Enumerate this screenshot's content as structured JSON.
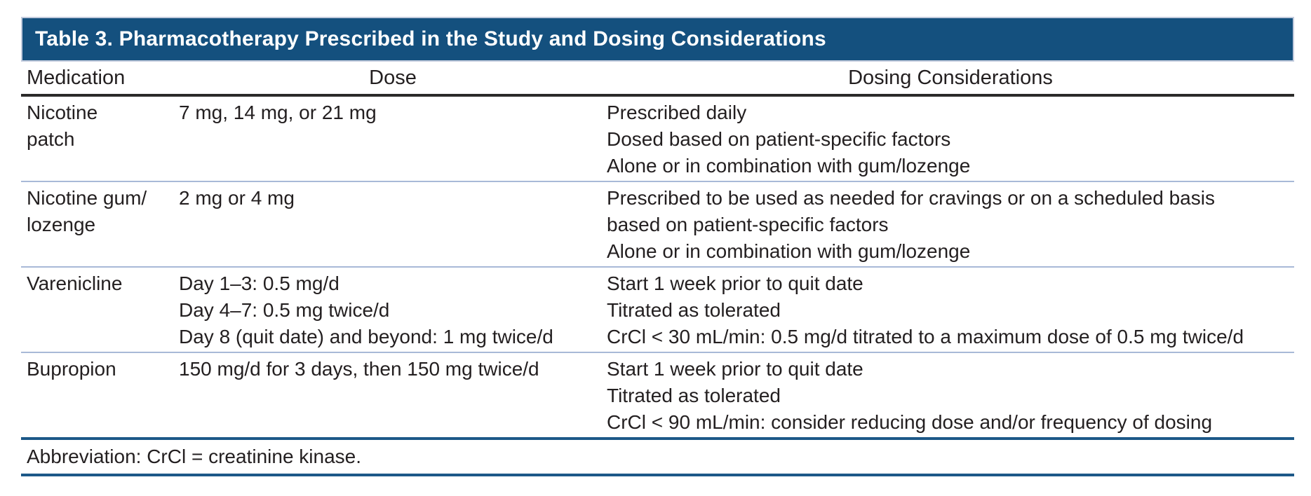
{
  "table": {
    "title": "Table 3. Pharmacotherapy Prescribed in the Study and Dosing Considerations",
    "columns": {
      "medication": "Medication",
      "dose": "Dose",
      "considerations": "Dosing Considerations"
    },
    "rows": [
      {
        "medication_lines": [
          "Nicotine",
          "patch"
        ],
        "dose_lines": [
          "7 mg, 14 mg, or 21 mg"
        ],
        "considerations_lines": [
          "Prescribed daily",
          "Dosed based on patient-specific factors",
          "Alone or in combination with gum/lozenge"
        ]
      },
      {
        "medication_lines": [
          "Nicotine gum/",
          "lozenge"
        ],
        "dose_lines": [
          "2 mg or 4 mg"
        ],
        "considerations_lines": [
          "Prescribed to be used as needed for cravings or on a scheduled basis",
          "based on patient-specific factors",
          "Alone or in combination with gum/lozenge"
        ]
      },
      {
        "medication_lines": [
          "Varenicline"
        ],
        "dose_lines": [
          "Day 1–3: 0.5 mg/d",
          "Day 4–7: 0.5 mg twice/d",
          "Day 8 (quit date) and beyond: 1 mg twice/d"
        ],
        "considerations_lines": [
          "Start 1 week prior to quit date",
          "Titrated as tolerated",
          "CrCl < 30 mL/min: 0.5 mg/d titrated to a maximum dose of 0.5 mg twice/d"
        ]
      },
      {
        "medication_lines": [
          "Bupropion"
        ],
        "dose_lines": [
          "150 mg/d for 3 days, then 150 mg twice/d"
        ],
        "considerations_lines": [
          "Start 1 week prior to quit date",
          "Titrated as tolerated",
          "CrCl < 90 mL/min: consider reducing dose and/or frequency of dosing"
        ]
      }
    ],
    "footnote": "Abbreviation: CrCl = creatinine kinase."
  },
  "colors": {
    "title_bar_background": "#14507e",
    "title_bar_border": "#c2cbdd",
    "title_text": "#ffffff",
    "body_text": "#231f20",
    "header_underline": "#2b2a29",
    "row_separator": "#a8b9d7",
    "blue_rule": "#1c5888"
  }
}
